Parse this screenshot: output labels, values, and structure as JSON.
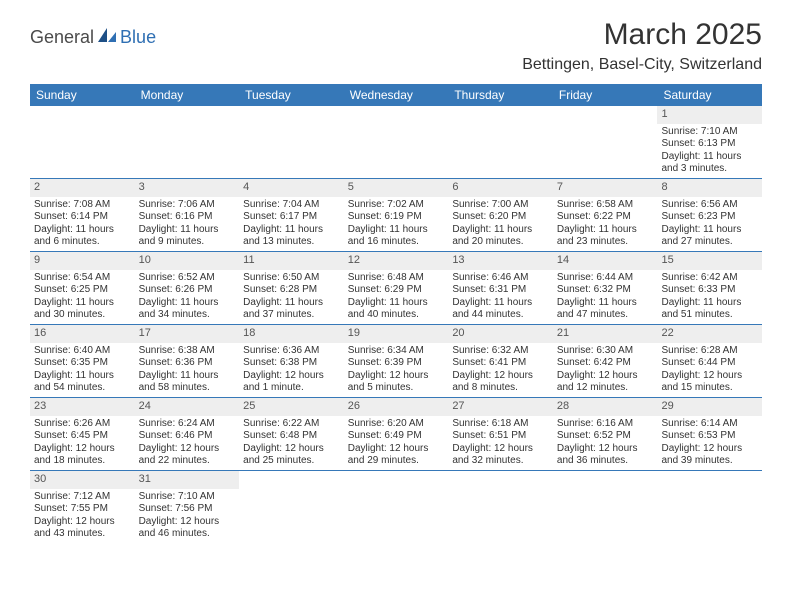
{
  "logo": {
    "general": "General",
    "blue": "Blue"
  },
  "title": "March 2025",
  "subtitle": "Bettingen, Basel-City, Switzerland",
  "colors": {
    "header_bg": "#3678b8",
    "header_text": "#ffffff",
    "row_border": "#3678b8",
    "daynum_bg": "#eeeeee",
    "text": "#333333"
  },
  "days_of_week": [
    "Sunday",
    "Monday",
    "Tuesday",
    "Wednesday",
    "Thursday",
    "Friday",
    "Saturday"
  ],
  "weeks": [
    [
      null,
      null,
      null,
      null,
      null,
      null,
      {
        "n": "1",
        "sr": "Sunrise: 7:10 AM",
        "ss": "Sunset: 6:13 PM",
        "dl1": "Daylight: 11 hours",
        "dl2": "and 3 minutes."
      }
    ],
    [
      {
        "n": "2",
        "sr": "Sunrise: 7:08 AM",
        "ss": "Sunset: 6:14 PM",
        "dl1": "Daylight: 11 hours",
        "dl2": "and 6 minutes."
      },
      {
        "n": "3",
        "sr": "Sunrise: 7:06 AM",
        "ss": "Sunset: 6:16 PM",
        "dl1": "Daylight: 11 hours",
        "dl2": "and 9 minutes."
      },
      {
        "n": "4",
        "sr": "Sunrise: 7:04 AM",
        "ss": "Sunset: 6:17 PM",
        "dl1": "Daylight: 11 hours",
        "dl2": "and 13 minutes."
      },
      {
        "n": "5",
        "sr": "Sunrise: 7:02 AM",
        "ss": "Sunset: 6:19 PM",
        "dl1": "Daylight: 11 hours",
        "dl2": "and 16 minutes."
      },
      {
        "n": "6",
        "sr": "Sunrise: 7:00 AM",
        "ss": "Sunset: 6:20 PM",
        "dl1": "Daylight: 11 hours",
        "dl2": "and 20 minutes."
      },
      {
        "n": "7",
        "sr": "Sunrise: 6:58 AM",
        "ss": "Sunset: 6:22 PM",
        "dl1": "Daylight: 11 hours",
        "dl2": "and 23 minutes."
      },
      {
        "n": "8",
        "sr": "Sunrise: 6:56 AM",
        "ss": "Sunset: 6:23 PM",
        "dl1": "Daylight: 11 hours",
        "dl2": "and 27 minutes."
      }
    ],
    [
      {
        "n": "9",
        "sr": "Sunrise: 6:54 AM",
        "ss": "Sunset: 6:25 PM",
        "dl1": "Daylight: 11 hours",
        "dl2": "and 30 minutes."
      },
      {
        "n": "10",
        "sr": "Sunrise: 6:52 AM",
        "ss": "Sunset: 6:26 PM",
        "dl1": "Daylight: 11 hours",
        "dl2": "and 34 minutes."
      },
      {
        "n": "11",
        "sr": "Sunrise: 6:50 AM",
        "ss": "Sunset: 6:28 PM",
        "dl1": "Daylight: 11 hours",
        "dl2": "and 37 minutes."
      },
      {
        "n": "12",
        "sr": "Sunrise: 6:48 AM",
        "ss": "Sunset: 6:29 PM",
        "dl1": "Daylight: 11 hours",
        "dl2": "and 40 minutes."
      },
      {
        "n": "13",
        "sr": "Sunrise: 6:46 AM",
        "ss": "Sunset: 6:31 PM",
        "dl1": "Daylight: 11 hours",
        "dl2": "and 44 minutes."
      },
      {
        "n": "14",
        "sr": "Sunrise: 6:44 AM",
        "ss": "Sunset: 6:32 PM",
        "dl1": "Daylight: 11 hours",
        "dl2": "and 47 minutes."
      },
      {
        "n": "15",
        "sr": "Sunrise: 6:42 AM",
        "ss": "Sunset: 6:33 PM",
        "dl1": "Daylight: 11 hours",
        "dl2": "and 51 minutes."
      }
    ],
    [
      {
        "n": "16",
        "sr": "Sunrise: 6:40 AM",
        "ss": "Sunset: 6:35 PM",
        "dl1": "Daylight: 11 hours",
        "dl2": "and 54 minutes."
      },
      {
        "n": "17",
        "sr": "Sunrise: 6:38 AM",
        "ss": "Sunset: 6:36 PM",
        "dl1": "Daylight: 11 hours",
        "dl2": "and 58 minutes."
      },
      {
        "n": "18",
        "sr": "Sunrise: 6:36 AM",
        "ss": "Sunset: 6:38 PM",
        "dl1": "Daylight: 12 hours",
        "dl2": "and 1 minute."
      },
      {
        "n": "19",
        "sr": "Sunrise: 6:34 AM",
        "ss": "Sunset: 6:39 PM",
        "dl1": "Daylight: 12 hours",
        "dl2": "and 5 minutes."
      },
      {
        "n": "20",
        "sr": "Sunrise: 6:32 AM",
        "ss": "Sunset: 6:41 PM",
        "dl1": "Daylight: 12 hours",
        "dl2": "and 8 minutes."
      },
      {
        "n": "21",
        "sr": "Sunrise: 6:30 AM",
        "ss": "Sunset: 6:42 PM",
        "dl1": "Daylight: 12 hours",
        "dl2": "and 12 minutes."
      },
      {
        "n": "22",
        "sr": "Sunrise: 6:28 AM",
        "ss": "Sunset: 6:44 PM",
        "dl1": "Daylight: 12 hours",
        "dl2": "and 15 minutes."
      }
    ],
    [
      {
        "n": "23",
        "sr": "Sunrise: 6:26 AM",
        "ss": "Sunset: 6:45 PM",
        "dl1": "Daylight: 12 hours",
        "dl2": "and 18 minutes."
      },
      {
        "n": "24",
        "sr": "Sunrise: 6:24 AM",
        "ss": "Sunset: 6:46 PM",
        "dl1": "Daylight: 12 hours",
        "dl2": "and 22 minutes."
      },
      {
        "n": "25",
        "sr": "Sunrise: 6:22 AM",
        "ss": "Sunset: 6:48 PM",
        "dl1": "Daylight: 12 hours",
        "dl2": "and 25 minutes."
      },
      {
        "n": "26",
        "sr": "Sunrise: 6:20 AM",
        "ss": "Sunset: 6:49 PM",
        "dl1": "Daylight: 12 hours",
        "dl2": "and 29 minutes."
      },
      {
        "n": "27",
        "sr": "Sunrise: 6:18 AM",
        "ss": "Sunset: 6:51 PM",
        "dl1": "Daylight: 12 hours",
        "dl2": "and 32 minutes."
      },
      {
        "n": "28",
        "sr": "Sunrise: 6:16 AM",
        "ss": "Sunset: 6:52 PM",
        "dl1": "Daylight: 12 hours",
        "dl2": "and 36 minutes."
      },
      {
        "n": "29",
        "sr": "Sunrise: 6:14 AM",
        "ss": "Sunset: 6:53 PM",
        "dl1": "Daylight: 12 hours",
        "dl2": "and 39 minutes."
      }
    ],
    [
      {
        "n": "30",
        "sr": "Sunrise: 7:12 AM",
        "ss": "Sunset: 7:55 PM",
        "dl1": "Daylight: 12 hours",
        "dl2": "and 43 minutes."
      },
      {
        "n": "31",
        "sr": "Sunrise: 7:10 AM",
        "ss": "Sunset: 7:56 PM",
        "dl1": "Daylight: 12 hours",
        "dl2": "and 46 minutes."
      },
      null,
      null,
      null,
      null,
      null
    ]
  ]
}
